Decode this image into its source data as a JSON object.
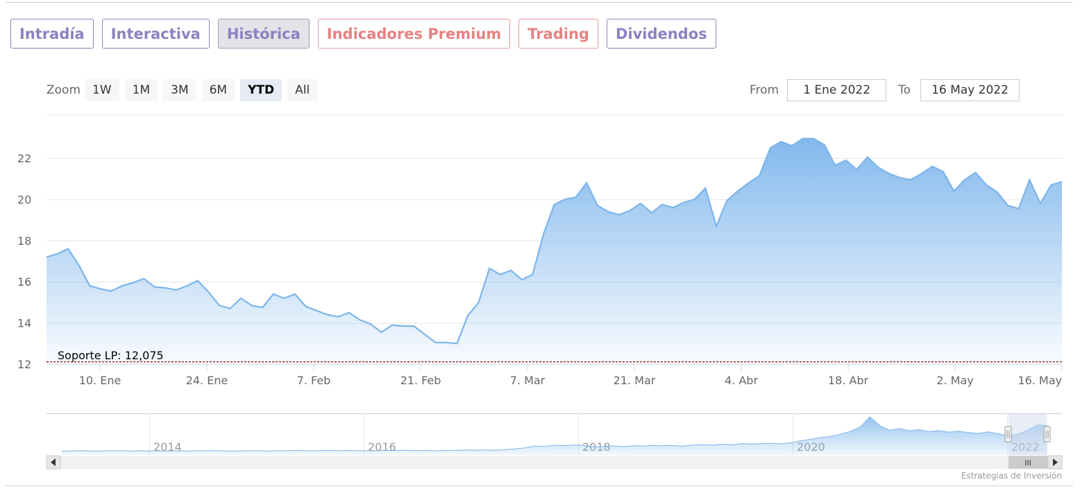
{
  "tabs": [
    {
      "label": "Intradía",
      "style": "normal"
    },
    {
      "label": "Interactiva",
      "style": "normal"
    },
    {
      "label": "Histórica",
      "style": "active"
    },
    {
      "label": "Indicadores Premium",
      "style": "red"
    },
    {
      "label": "Trading",
      "style": "red"
    },
    {
      "label": "Dividendos",
      "style": "normal"
    }
  ],
  "zoom": {
    "label": "Zoom",
    "buttons": [
      "1W",
      "1M",
      "3M",
      "6M",
      "YTD",
      "All"
    ],
    "selected": "YTD"
  },
  "range": {
    "from_label": "From",
    "from_value": "1 Ene 2022",
    "to_label": "To",
    "to_value": "16 May 2022"
  },
  "colors": {
    "line": "#7cb5ec",
    "support": "#8b0000",
    "navigator_mask": "#ccd6eb"
  },
  "chart_data": {
    "type": "area",
    "x_start": "2022-01-03",
    "x_end": "2022-05-16",
    "x_ticks": [
      "10. Ene",
      "24. Ene",
      "7. Feb",
      "21. Feb",
      "7. Mar",
      "21. Mar",
      "4. Abr",
      "18. Abr",
      "2. May",
      "16. May"
    ],
    "y_ticks": [
      12,
      14,
      16,
      18,
      20,
      22
    ],
    "ylim": [
      12,
      24
    ],
    "grid": true,
    "series": [
      {
        "values": [
          17.2,
          17.35,
          17.6,
          16.8,
          15.8,
          15.65,
          15.55,
          15.8,
          15.95,
          16.15,
          15.75,
          15.7,
          15.6,
          15.8,
          16.05,
          15.5,
          14.85,
          14.7,
          15.2,
          14.85,
          14.75,
          15.4,
          15.2,
          15.4,
          14.8,
          14.6,
          14.4,
          14.3,
          14.5,
          14.15,
          13.95,
          13.55,
          13.9,
          13.85,
          13.85,
          13.45,
          13.05,
          13.05,
          13.0,
          14.35,
          15.0,
          16.65,
          16.35,
          16.55,
          16.1,
          16.35,
          18.3,
          19.75,
          20.0,
          20.1,
          20.8,
          19.7,
          19.4,
          19.25,
          19.45,
          19.8,
          19.35,
          19.75,
          19.6,
          19.85,
          20.0,
          20.55,
          18.7,
          19.95,
          20.4,
          20.8,
          21.15,
          22.5,
          22.8,
          22.6,
          22.95,
          22.95,
          22.65,
          21.65,
          21.9,
          21.45,
          22.05,
          21.55,
          21.25,
          21.05,
          20.95,
          21.25,
          21.6,
          21.35,
          20.4,
          20.95,
          21.3,
          20.7,
          20.35,
          19.7,
          19.55,
          20.95,
          19.8,
          20.7,
          20.85
        ]
      }
    ],
    "support": {
      "label": "Soporte LP: 12,075",
      "value": 12.075
    },
    "navigator": {
      "year_labels": [
        "2014",
        "2016",
        "2018",
        "2020",
        "2022"
      ],
      "values": [
        2.0,
        2.0,
        2.1,
        2.0,
        2.0,
        2.1,
        2.1,
        2.0,
        2.1,
        2.0,
        2.0,
        2.0,
        2.1,
        2.0,
        2.1,
        2.2,
        2.1,
        2.0,
        2.0,
        2.1,
        2.1,
        2.0,
        2.1,
        2.2,
        2.3,
        2.2,
        2.2,
        2.3,
        2.2,
        2.3,
        2.2,
        2.2,
        2.1,
        2.3,
        2.3,
        2.4,
        2.2,
        2.3,
        2.1,
        2.3,
        2.4,
        2.6,
        2.5,
        2.7,
        2.4,
        3.0,
        3.4,
        4.2,
        5.6,
        5.2,
        6.1,
        5.8,
        6.3,
        6.0,
        4.8,
        5.4,
        5.6,
        5.1,
        5.8,
        5.5,
        6.0,
        5.7,
        5.9,
        5.5,
        6.2,
        6.6,
        6.3,
        6.9,
        6.5,
        7.4,
        7.0,
        7.3,
        7.6,
        7.2,
        8.0,
        9.5,
        10.5,
        11.8,
        12.6,
        14.2,
        16.3,
        19.5,
        27.0,
        20.5,
        17.2,
        18.4,
        16.8,
        17.6,
        16.2,
        16.9,
        15.8,
        16.4,
        15.5,
        14.8,
        16.0,
        14.6,
        13.0,
        14.2,
        17.2,
        21.0,
        20.5
      ]
    }
  },
  "scrollbar": {
    "grip": "III"
  },
  "credit": "Estrategias de Inversión"
}
